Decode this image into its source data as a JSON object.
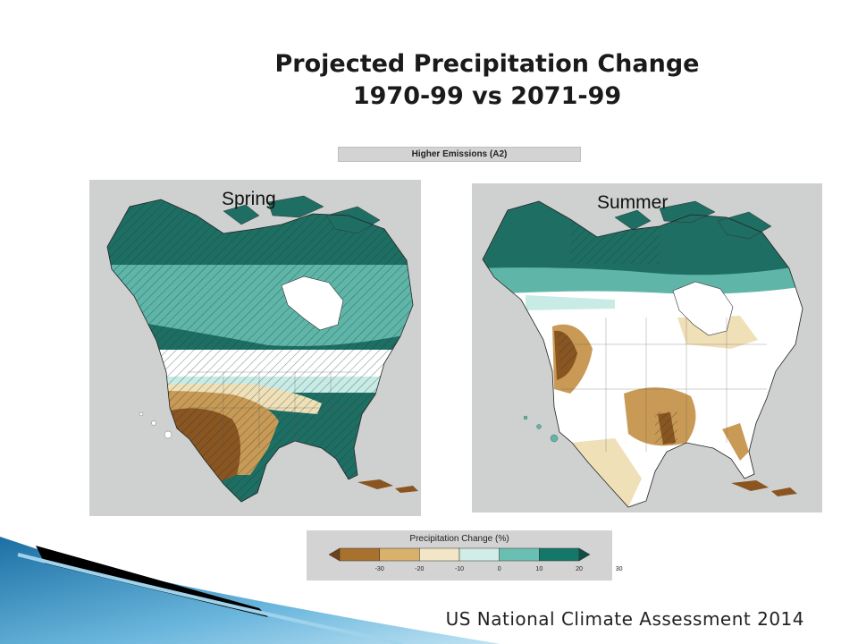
{
  "title": {
    "line1": "Projected Precipitation Change",
    "line2": "1970-99 vs 2071-99"
  },
  "scenario_label": "Higher Emissions (A2)",
  "maps": [
    {
      "season": "Spring"
    },
    {
      "season": "Summer"
    }
  ],
  "legend": {
    "title": "Precipitation Change (%)",
    "ticks": [
      "-30",
      "-20",
      "-10",
      "0",
      "10",
      "20",
      "30"
    ],
    "colors": [
      "#6e4218",
      "#a8712e",
      "#d9b06c",
      "#f2e6c6",
      "#d2ece8",
      "#69bfb2",
      "#14776a",
      "#0d4f45"
    ]
  },
  "colors": {
    "wet_strong": "#1e6e63",
    "wet": "#5fb5a8",
    "wet_light": "#c9ebe6",
    "dry_light": "#f0e0b8",
    "dry": "#c99a55",
    "dry_strong": "#8a5520",
    "ocean": "#cfd1d1"
  },
  "credit": "US National Climate Assessment 2014"
}
